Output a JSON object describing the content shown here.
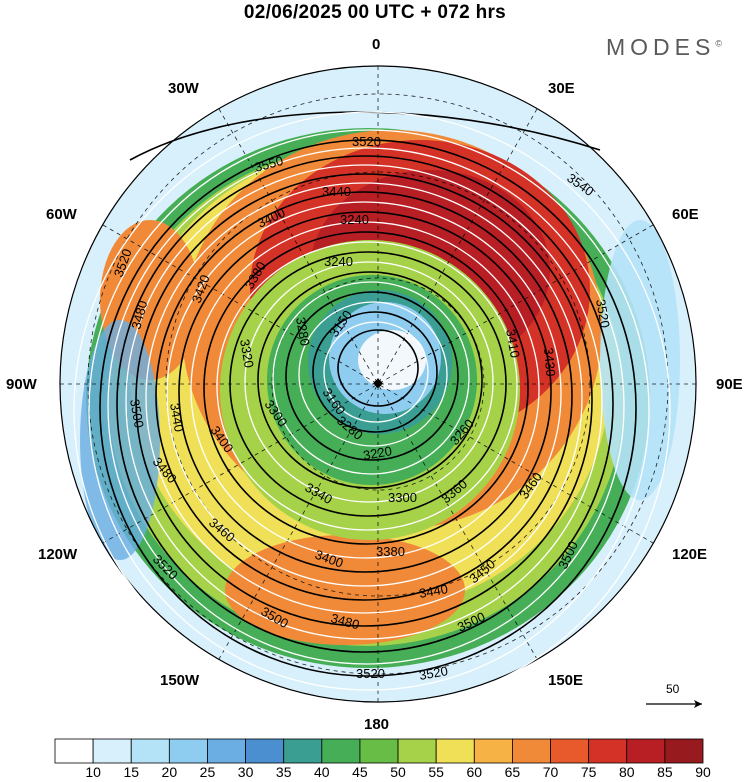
{
  "title": "02/06/2025  00 UTC  + 072 hrs",
  "brand": "MODES",
  "brand_mark": "©",
  "longitude_labels": {
    "n": "0",
    "e30": "30E",
    "e60": "60E",
    "e90": "90E",
    "e120": "120E",
    "e150": "150E",
    "s": "180",
    "w150": "150W",
    "w120": "120W",
    "w90": "90W",
    "w60": "60W",
    "w30": "30W"
  },
  "reference_vector": {
    "value": "50"
  },
  "colorbar": {
    "ticks": [
      "10",
      "15",
      "20",
      "25",
      "30",
      "35",
      "40",
      "45",
      "50",
      "55",
      "60",
      "65",
      "70",
      "75",
      "80",
      "85",
      "90"
    ],
    "colors": [
      "#ffffff",
      "#d8f0fb",
      "#b4e2f7",
      "#8fcdf0",
      "#6aaee3",
      "#4b8fd0",
      "#3b9e93",
      "#46ae57",
      "#67bd45",
      "#a6d24a",
      "#f0e057",
      "#f6b244",
      "#f08a38",
      "#e85a2c",
      "#d43227",
      "#b81f24",
      "#961a1e"
    ]
  },
  "contours": {
    "labels": [
      "3520",
      "3540",
      "3550",
      "3440",
      "3400",
      "3240",
      "3240",
      "3520",
      "3480",
      "3420",
      "3380",
      "3280",
      "3150",
      "3500",
      "3440",
      "3320",
      "3160",
      "3410",
      "3430",
      "3520",
      "3400",
      "3300",
      "3280",
      "3260",
      "3220",
      "3480",
      "3340",
      "3300",
      "3360",
      "3460",
      "3460",
      "3400",
      "3380",
      "3440",
      "3450",
      "3500",
      "3520",
      "3500",
      "3480",
      "3500",
      "3520",
      "3520"
    ]
  }
}
